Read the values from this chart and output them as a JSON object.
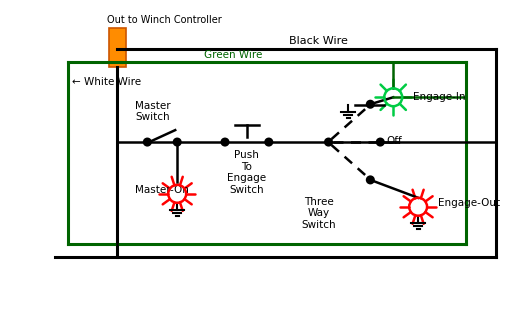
{
  "bg_color": "#ffffff",
  "black_wire_label": "Black Wire",
  "green_wire_label": "Green Wire",
  "white_wire_label": "← White Wire",
  "connector_label": "Out to Winch Controller",
  "master_switch_label": "Master\nSwitch",
  "master_on_label": "Master-On",
  "push_engage_label": "Push\nTo\nEngage\nSwitch",
  "three_way_label": "Three\nWay\nSwitch",
  "engage_in_label": "Engage-In",
  "engage_out_label": "Engage-Out",
  "off_label": "Off",
  "wire_black": "#000000",
  "wire_green": "#006400",
  "connector_color": "#FF8C00",
  "bulb_red": "#FF0000",
  "bulb_green": "#00CC44",
  "ground_color": "#000000"
}
